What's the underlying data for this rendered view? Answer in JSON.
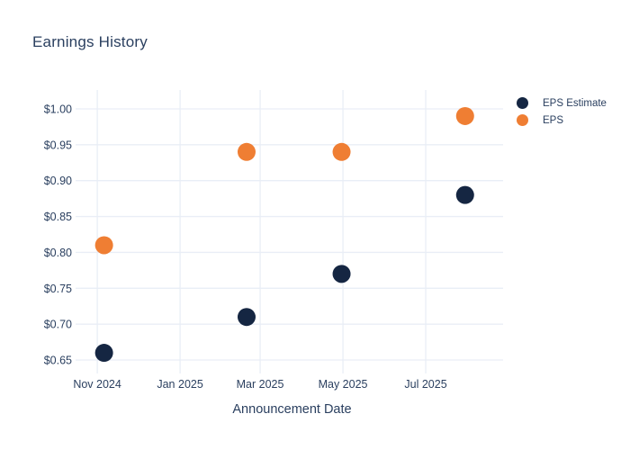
{
  "title": "Earnings History",
  "colors": {
    "background": "#ffffff",
    "text": "#2a3f5f",
    "grid": "#e9eef6",
    "eps_estimate": "#152642",
    "eps": "#ef7e33"
  },
  "x_axis_title": "Announcement Date",
  "chart_data": {
    "type": "scatter",
    "title": "Earnings History",
    "xlabel": "Announcement Date",
    "ylabel": "",
    "grid": true,
    "legend_position": "right",
    "marker_size_px": 20,
    "xlim": [
      "2024-10-20",
      "2025-08-27"
    ],
    "ylim": [
      0.6375,
      1.0263
    ],
    "x_ticks": [
      {
        "date": "2024-11-01",
        "label": "Nov 2024"
      },
      {
        "date": "2025-01-01",
        "label": "Jan 2025"
      },
      {
        "date": "2025-03-01",
        "label": "Mar 2025"
      },
      {
        "date": "2025-05-01",
        "label": "May 2025"
      },
      {
        "date": "2025-07-01",
        "label": "Jul 2025"
      }
    ],
    "y_ticks": [
      {
        "value": 0.65,
        "label": "$0.65"
      },
      {
        "value": 0.7,
        "label": "$0.70"
      },
      {
        "value": 0.75,
        "label": "$0.75"
      },
      {
        "value": 0.8,
        "label": "$0.80"
      },
      {
        "value": 0.85,
        "label": "$0.85"
      },
      {
        "value": 0.9,
        "label": "$0.90"
      },
      {
        "value": 0.95,
        "label": "$0.95"
      },
      {
        "value": 1.0,
        "label": "$1.00"
      }
    ],
    "series": [
      {
        "name": "EPS Estimate",
        "color": "#152642",
        "points": [
          {
            "date": "2024-11-06",
            "value": 0.66
          },
          {
            "date": "2025-02-19",
            "value": 0.71
          },
          {
            "date": "2025-04-30",
            "value": 0.77
          },
          {
            "date": "2025-07-30",
            "value": 0.88
          }
        ]
      },
      {
        "name": "EPS",
        "color": "#ef7e33",
        "points": [
          {
            "date": "2024-11-06",
            "value": 0.81
          },
          {
            "date": "2025-02-19",
            "value": 0.94
          },
          {
            "date": "2025-04-30",
            "value": 0.94
          },
          {
            "date": "2025-07-30",
            "value": 0.99
          }
        ]
      }
    ]
  }
}
